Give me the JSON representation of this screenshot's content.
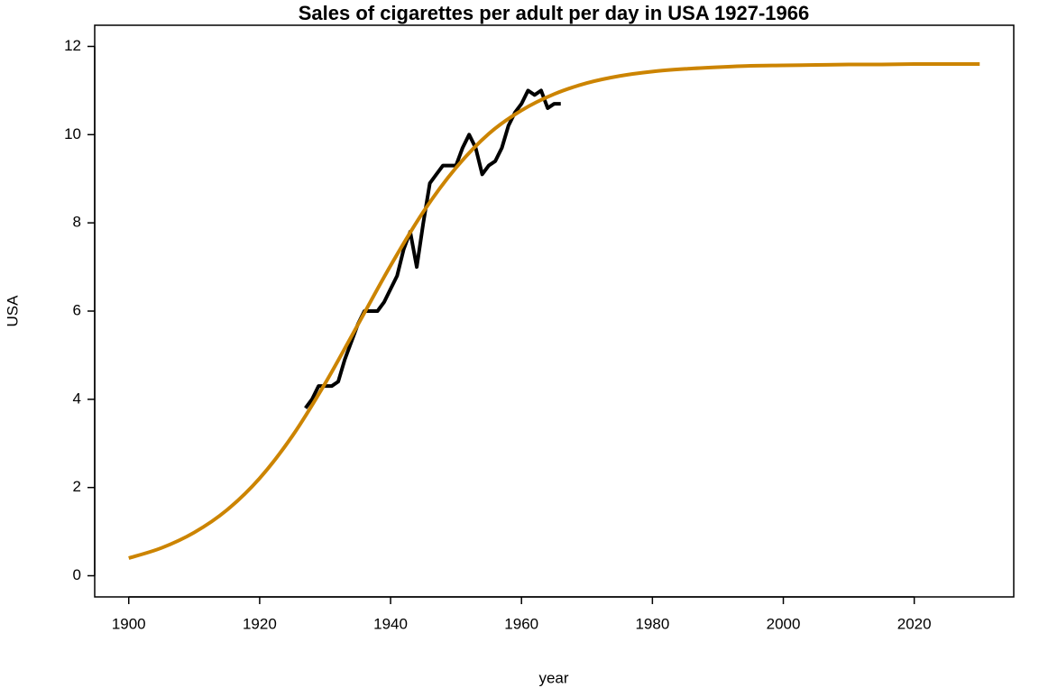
{
  "chart_data": {
    "type": "line",
    "title": "Sales of cigarettes per adult per day in USA 1927-1966",
    "x_label": "year",
    "y_label": "USA",
    "xlim": [
      1894.8,
      2035.2
    ],
    "ylim": [
      -0.48,
      12.48
    ],
    "xticks": [
      1900,
      1920,
      1940,
      1960,
      1980,
      2000,
      2020
    ],
    "yticks": [
      0,
      2,
      4,
      6,
      8,
      10,
      12
    ],
    "series": [
      {
        "color": "#000000",
        "x": [
          1927,
          1928,
          1929,
          1930,
          1931,
          1932,
          1933,
          1934,
          1935,
          1936,
          1937,
          1938,
          1939,
          1940,
          1941,
          1942,
          1943,
          1944,
          1945,
          1946,
          1947,
          1948,
          1949,
          1950,
          1951,
          1952,
          1953,
          1954,
          1955,
          1956,
          1957,
          1958,
          1959,
          1960,
          1961,
          1962,
          1963,
          1964,
          1965,
          1966
        ],
        "values": [
          3.8,
          4.0,
          4.3,
          4.3,
          4.3,
          4.4,
          4.9,
          5.3,
          5.7,
          6.0,
          6.0,
          6.0,
          6.2,
          6.5,
          6.8,
          7.4,
          7.8,
          7.0,
          8.0,
          8.9,
          9.1,
          9.3,
          9.3,
          9.3,
          9.7,
          10.0,
          9.7,
          9.1,
          9.3,
          9.4,
          9.7,
          10.2,
          10.5,
          10.7,
          11.0,
          10.9,
          11.0,
          10.6,
          10.7,
          10.7
        ]
      },
      {
        "color": "#cc8400",
        "x": [
          1900,
          1905,
          1910,
          1915,
          1920,
          1925,
          1930,
          1935,
          1940,
          1945,
          1950,
          1955,
          1960,
          1965,
          1970,
          1975,
          1980,
          1985,
          1990,
          1995,
          2000,
          2005,
          2010,
          2015,
          2020,
          2025,
          2030
        ],
        "values": [
          0.4,
          0.63,
          0.98,
          1.49,
          2.21,
          3.17,
          4.36,
          5.69,
          7.03,
          8.25,
          9.25,
          10.02,
          10.55,
          10.92,
          11.17,
          11.33,
          11.43,
          11.49,
          11.53,
          11.56,
          11.57,
          11.58,
          11.59,
          11.59,
          11.6,
          11.6,
          11.6
        ]
      }
    ]
  }
}
